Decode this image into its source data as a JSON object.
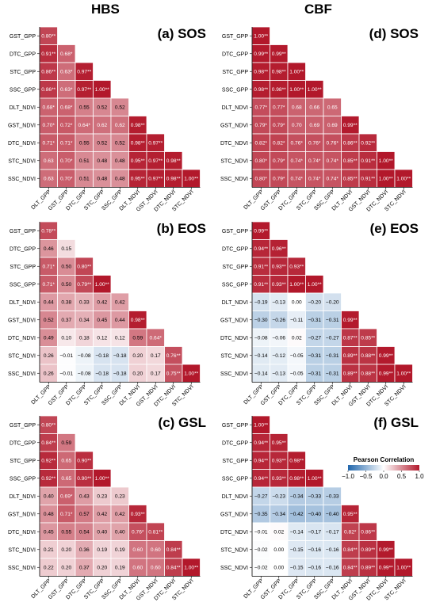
{
  "column_titles": [
    "HBS",
    "CBF"
  ],
  "variables": [
    "GST_GPP",
    "DTC_GPP",
    "STC_GPP",
    "SSC_GPP",
    "DLT_NDVI",
    "GST_NDVI",
    "DTC_NDVI",
    "STC_NDVI",
    "SSC_NDVI"
  ],
  "x_variables": [
    "DLT_GPP",
    "GST_GPP",
    "DTC_GPP",
    "STC_GPP",
    "SSC_GPP",
    "DLT_NDVI",
    "GST_NDVI",
    "DTC_NDVI",
    "STC_NDVI"
  ],
  "legend": {
    "title": "Pearson Correlation",
    "ticks": [
      "−1.0",
      "−0.5",
      "0.0",
      "0.5",
      "1.0"
    ],
    "colors": {
      "negative": "#2166ac",
      "neutral": "#ffffff",
      "positive": "#b2182b"
    }
  },
  "chart_data": [
    {
      "type": "heatmap",
      "title": "(a) SOS",
      "cells": [
        [
          "0.80**"
        ],
        [
          "0.91**",
          "0.68*"
        ],
        [
          "0.86**",
          "0.63*",
          "0.97**"
        ],
        [
          "0.86**",
          "0.63*",
          "0.97**",
          "1.00**"
        ],
        [
          "0.68*",
          "0.68*",
          "0.55",
          "0.52",
          "0.52"
        ],
        [
          "0.70*",
          "0.72*",
          "0.64*",
          "0.62",
          "0.62",
          "0.98**"
        ],
        [
          "0.71*",
          "0.71*",
          "0.55",
          "0.52",
          "0.52",
          "0.98**",
          "0.97**"
        ],
        [
          "0.63",
          "0.70*",
          "0.51",
          "0.48",
          "0.48",
          "0.95**",
          "0.97**",
          "0.98**"
        ],
        [
          "0.63",
          "0.70*",
          "0.51",
          "0.48",
          "0.48",
          "0.95**",
          "0.97**",
          "0.98**",
          "1.00**"
        ]
      ]
    },
    {
      "type": "heatmap",
      "title": "(b) EOS",
      "cells": [
        [
          "0.78**"
        ],
        [
          "0.46",
          "0.15"
        ],
        [
          "0.71*",
          "0.50",
          "0.80**"
        ],
        [
          "0.71*",
          "0.50",
          "0.79**",
          "1.00**"
        ],
        [
          "0.44",
          "0.38",
          "0.33",
          "0.42",
          "0.42"
        ],
        [
          "0.52",
          "0.37",
          "0.34",
          "0.45",
          "0.44",
          "0.98**"
        ],
        [
          "0.49",
          "0.10",
          "0.18",
          "0.12",
          "0.12",
          "0.59",
          "0.64*"
        ],
        [
          "0.26",
          "−0.01",
          "−0.08",
          "−0.18",
          "−0.18",
          "0.20",
          "0.17",
          "0.76**"
        ],
        [
          "0.26",
          "−0.01",
          "−0.08",
          "−0.18",
          "−0.18",
          "0.20",
          "0.17",
          "0.75**",
          "1.00**"
        ]
      ]
    },
    {
      "type": "heatmap",
      "title": "(c) GSL",
      "cells": [
        [
          "0.80**"
        ],
        [
          "0.84**",
          "0.59"
        ],
        [
          "0.92**",
          "0.65",
          "0.90**"
        ],
        [
          "0.92**",
          "0.65",
          "0.90**",
          "1.00**"
        ],
        [
          "0.40",
          "0.69*",
          "0.43",
          "0.23",
          "0.23"
        ],
        [
          "0.48",
          "0.71*",
          "0.57",
          "0.42",
          "0.42",
          "0.93**"
        ],
        [
          "0.45",
          "0.55",
          "0.54",
          "0.40",
          "0.40",
          "0.76*",
          "0.81**"
        ],
        [
          "0.21",
          "0.20",
          "0.36",
          "0.19",
          "0.19",
          "0.60",
          "0.60",
          "0.84**"
        ],
        [
          "0.22",
          "0.20",
          "0.37",
          "0.20",
          "0.19",
          "0.60",
          "0.60",
          "0.84**",
          "1.00**"
        ]
      ]
    },
    {
      "type": "heatmap",
      "title": "(d) SOS",
      "cells": [
        [
          "1.00**"
        ],
        [
          "0.99**",
          "0.99**"
        ],
        [
          "0.98**",
          "0.98**",
          "1.00**"
        ],
        [
          "0.98**",
          "0.98**",
          "1.00**",
          "1.00**"
        ],
        [
          "0.77*",
          "0.77*",
          "0.68",
          "0.66",
          "0.65"
        ],
        [
          "0.79*",
          "0.79*",
          "0.70",
          "0.69",
          "0.69",
          "0.99**"
        ],
        [
          "0.82*",
          "0.82*",
          "0.76*",
          "0.76*",
          "0.76*",
          "0.86**",
          "0.92**"
        ],
        [
          "0.80*",
          "0.79*",
          "0.74*",
          "0.74*",
          "0.74*",
          "0.85**",
          "0.91**",
          "1.00**"
        ],
        [
          "0.80*",
          "0.79*",
          "0.74*",
          "0.74*",
          "0.74*",
          "0.85**",
          "0.91**",
          "1.00**",
          "1.00**"
        ]
      ]
    },
    {
      "type": "heatmap",
      "title": "(e) EOS",
      "cells": [
        [
          "0.99**"
        ],
        [
          "0.94**",
          "0.96**"
        ],
        [
          "0.91**",
          "0.93**",
          "0.93**"
        ],
        [
          "0.91**",
          "0.93**",
          "1.00**",
          "1.00**"
        ],
        [
          "−0.19",
          "−0.13",
          "0.00",
          "−0.20",
          "−0.20"
        ],
        [
          "−0.30",
          "−0.26",
          "−0.11",
          "−0.31",
          "−0.31",
          "0.99**"
        ],
        [
          "−0.08",
          "−0.06",
          "0.02",
          "−0.27",
          "−0.27",
          "0.87**",
          "0.85**"
        ],
        [
          "−0.14",
          "−0.12",
          "−0.05",
          "−0.31",
          "−0.31",
          "0.89**",
          "0.88**",
          "0.99**"
        ],
        [
          "−0.14",
          "−0.13",
          "−0.05",
          "−0.31",
          "−0.31",
          "0.89**",
          "0.88**",
          "0.99**",
          "1.00**"
        ]
      ]
    },
    {
      "type": "heatmap",
      "title": "(f) GSL",
      "cells": [
        [
          "1.00**"
        ],
        [
          "0.94**",
          "0.95**"
        ],
        [
          "0.94**",
          "0.93**",
          "0.98**"
        ],
        [
          "0.94**",
          "0.93**",
          "0.98**",
          "1.00**"
        ],
        [
          "−0.27",
          "−0.23",
          "−0.34",
          "−0.33",
          "−0.33"
        ],
        [
          "−0.35",
          "−0.34",
          "−0.42",
          "−0.40",
          "−0.40",
          "0.95**"
        ],
        [
          "−0.01",
          "0.02",
          "−0.14",
          "−0.17",
          "−0.17",
          "0.82*",
          "0.86**"
        ],
        [
          "−0.02",
          "0.00",
          "−0.15",
          "−0.16",
          "−0.16",
          "0.84**",
          "0.89**",
          "0.99**"
        ],
        [
          "−0.02",
          "0.00",
          "−0.15",
          "−0.16",
          "−0.16",
          "0.84**",
          "0.89**",
          "0.99**",
          "1.00**"
        ]
      ]
    }
  ]
}
